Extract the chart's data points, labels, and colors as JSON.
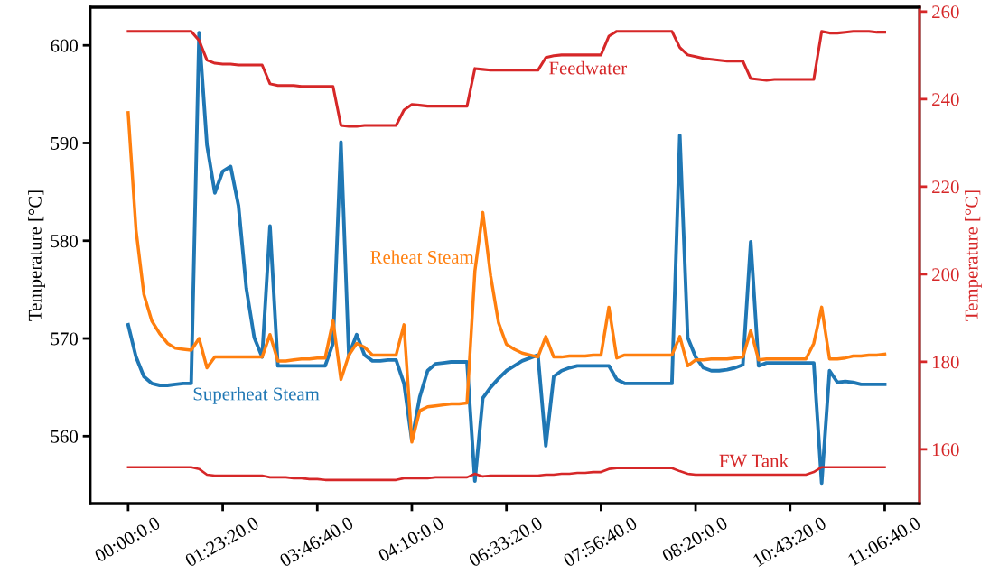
{
  "chart_data": {
    "type": "line",
    "ylabel": "Temperature [°C]",
    "y2label": "Temperature [°C]",
    "ylim": [
      553.1,
      603.9
    ],
    "y2lim": [
      147.6,
      261.0
    ],
    "categories": [
      "00:00:0.0",
      null,
      null,
      null,
      null,
      null,
      null,
      null,
      null,
      null,
      null,
      null,
      "01:23:20.0",
      null,
      null,
      null,
      null,
      null,
      null,
      null,
      null,
      null,
      null,
      null,
      "03:46:40.0",
      null,
      null,
      null,
      null,
      null,
      null,
      null,
      null,
      null,
      null,
      null,
      "04:10:0.0",
      null,
      null,
      null,
      null,
      null,
      null,
      null,
      null,
      null,
      null,
      null,
      "06:33:20.0",
      null,
      null,
      null,
      null,
      null,
      null,
      null,
      null,
      null,
      null,
      null,
      "07:56:40.0",
      null,
      null,
      null,
      null,
      null,
      null,
      null,
      null,
      null,
      null,
      null,
      "08:20:0.0",
      null,
      null,
      null,
      null,
      null,
      null,
      null,
      null,
      null,
      null,
      null,
      "10:43:20.0",
      null,
      null,
      null,
      null,
      null,
      null,
      null,
      null,
      null,
      null,
      null,
      "11:06:40.0"
    ],
    "yticks": [
      560,
      570,
      580,
      590,
      600
    ],
    "y2ticks": [
      160,
      180,
      200,
      220,
      240,
      260
    ],
    "grid": false,
    "legend": false,
    "marker": "none",
    "line_style": "solid",
    "series": [
      {
        "name": "Superheat Steam",
        "color": "#1f77b4",
        "values": [
          571.4,
          568.1,
          566.1,
          565.4,
          565.2,
          565.2,
          565.3,
          565.4,
          565.4,
          601.3,
          589.8,
          584.9,
          587.1,
          587.6,
          583.6,
          575.1,
          570.1,
          568.1,
          581.5,
          567.2,
          567.2,
          567.2,
          567.2,
          567.2,
          567.2,
          567.2,
          569.5,
          590.1,
          568.3,
          570.4,
          568.3,
          567.7,
          567.7,
          567.8,
          567.8,
          565.4,
          559.6,
          564.0,
          566.7,
          567.4,
          567.5,
          567.6,
          567.6,
          567.6,
          555.4,
          563.9,
          565.0,
          565.9,
          566.7,
          567.2,
          567.7,
          568.0,
          568.3,
          559.0,
          566.1,
          566.7,
          567.0,
          567.2,
          567.2,
          567.2,
          567.2,
          567.2,
          565.8,
          565.4,
          565.4,
          565.4,
          565.4,
          565.4,
          565.4,
          565.4,
          590.8,
          570.1,
          568.1,
          567.0,
          566.7,
          566.7,
          566.8,
          567.0,
          567.3,
          579.9,
          567.2,
          567.5,
          567.5,
          567.5,
          567.5,
          567.5,
          567.5,
          567.5,
          555.2,
          566.7,
          565.5,
          565.6,
          565.5,
          565.3,
          565.3,
          565.3,
          565.3
        ]
      },
      {
        "name": "Reheat Steam",
        "color": "#ff7f0e",
        "values": [
          593.1,
          581.1,
          574.5,
          571.8,
          570.5,
          569.5,
          569.0,
          568.9,
          568.8,
          570.0,
          567.0,
          568.1,
          568.1,
          568.1,
          568.1,
          568.1,
          568.1,
          568.1,
          570.4,
          567.7,
          567.7,
          567.8,
          567.9,
          567.9,
          568.0,
          568.0,
          571.8,
          565.8,
          568.3,
          569.5,
          569.1,
          568.3,
          568.3,
          568.3,
          568.3,
          571.4,
          559.4,
          562.6,
          563.0,
          563.1,
          563.2,
          563.3,
          563.3,
          563.4,
          576.9,
          582.9,
          576.4,
          571.6,
          569.4,
          568.9,
          568.5,
          568.3,
          568.1,
          570.2,
          568.1,
          568.1,
          568.2,
          568.2,
          568.2,
          568.3,
          568.3,
          573.2,
          568.0,
          568.3,
          568.3,
          568.3,
          568.3,
          568.3,
          568.3,
          568.3,
          570.2,
          567.2,
          567.8,
          567.8,
          567.9,
          567.9,
          567.9,
          568.0,
          568.1,
          570.8,
          567.8,
          567.9,
          567.9,
          567.9,
          567.9,
          567.9,
          567.9,
          569.5,
          573.2,
          567.9,
          567.9,
          568.0,
          568.2,
          568.2,
          568.3,
          568.3,
          568.4
        ]
      },
      {
        "name": "Feedwater",
        "color": "#d62728",
        "axis": "y2",
        "values": [
          255.5,
          255.5,
          255.5,
          255.5,
          255.5,
          255.5,
          255.5,
          255.5,
          255.5,
          253.4,
          248.9,
          248.2,
          248.0,
          248.0,
          247.8,
          247.8,
          247.8,
          247.8,
          243.5,
          243.1,
          243.1,
          243.1,
          242.9,
          242.9,
          242.9,
          242.9,
          242.9,
          234.0,
          233.8,
          233.8,
          234.0,
          234.0,
          234.0,
          234.0,
          234.0,
          237.5,
          238.8,
          238.6,
          238.4,
          238.4,
          238.4,
          238.4,
          238.4,
          238.4,
          247.0,
          246.8,
          246.6,
          246.6,
          246.6,
          246.6,
          246.6,
          246.6,
          246.6,
          249.5,
          249.9,
          250.1,
          250.1,
          250.1,
          250.1,
          250.1,
          250.1,
          254.4,
          255.5,
          255.5,
          255.5,
          255.5,
          255.5,
          255.5,
          255.5,
          255.5,
          251.8,
          250.1,
          249.7,
          249.3,
          249.1,
          248.9,
          248.7,
          248.7,
          248.7,
          244.7,
          244.5,
          244.3,
          244.5,
          244.5,
          244.5,
          244.5,
          244.5,
          244.5,
          255.5,
          255.1,
          255.1,
          255.3,
          255.5,
          255.5,
          255.5,
          255.3,
          255.3
        ]
      },
      {
        "name": "FW Tank",
        "color": "#d62728",
        "axis": "y2",
        "values": [
          155.9,
          155.9,
          155.9,
          155.9,
          155.9,
          155.9,
          155.9,
          155.9,
          155.9,
          155.5,
          154.2,
          154.0,
          154.0,
          154.0,
          154.0,
          154.0,
          154.0,
          154.0,
          153.6,
          153.6,
          153.6,
          153.4,
          153.4,
          153.2,
          153.2,
          153.0,
          153.0,
          153.0,
          153.0,
          153.0,
          153.0,
          153.0,
          153.0,
          153.0,
          153.0,
          153.4,
          153.4,
          153.4,
          153.4,
          153.6,
          153.6,
          153.6,
          153.6,
          153.6,
          154.4,
          153.8,
          154.0,
          154.0,
          154.0,
          154.0,
          154.0,
          154.0,
          154.0,
          154.2,
          154.2,
          154.4,
          154.4,
          154.6,
          154.6,
          154.8,
          154.8,
          155.5,
          155.7,
          155.7,
          155.7,
          155.7,
          155.7,
          155.7,
          155.7,
          155.7,
          155.0,
          154.4,
          154.2,
          154.2,
          154.2,
          154.2,
          154.2,
          154.2,
          154.2,
          154.2,
          154.2,
          154.2,
          154.2,
          154.2,
          154.2,
          154.2,
          154.2,
          154.8,
          155.9,
          155.9,
          155.9,
          155.9,
          155.9,
          155.9,
          155.9,
          155.9,
          155.9
        ]
      }
    ]
  }
}
